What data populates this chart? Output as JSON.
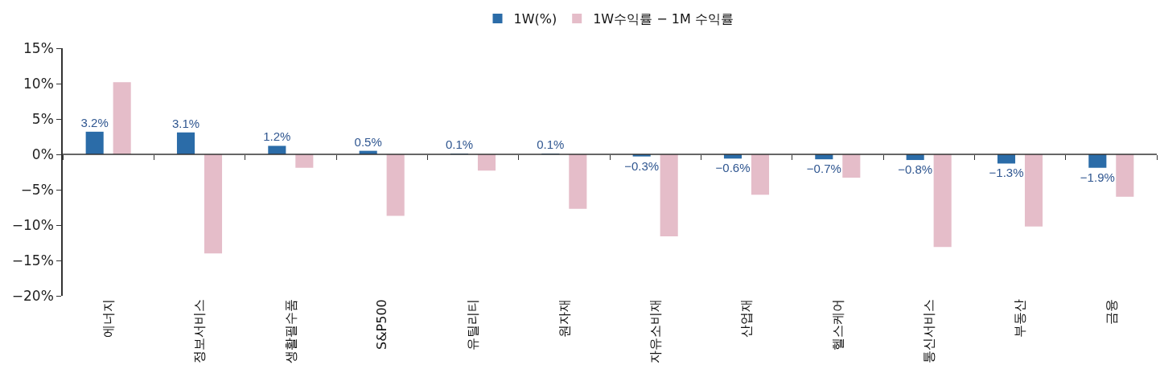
{
  "chart_data": {
    "type": "bar",
    "categories": [
      "에너지",
      "정보서비스",
      "생활필수품",
      "S&P500",
      "유틸리티",
      "원자재",
      "자유소비재",
      "산업재",
      "헬스케어",
      "통신서비스",
      "부동산",
      "금융"
    ],
    "series": [
      {
        "name": "1W(%)",
        "color": "#2b6ca8",
        "values": [
          3.2,
          3.1,
          1.2,
          0.5,
          0.1,
          0.1,
          -0.3,
          -0.6,
          -0.7,
          -0.8,
          -1.3,
          -1.9
        ],
        "value_labels": [
          "3.2%",
          "3.1%",
          "1.2%",
          "0.5%",
          "0.1%",
          "0.1%",
          "−0.3%",
          "−0.6%",
          "−0.7%",
          "−0.8%",
          "−1.3%",
          "−1.9%"
        ]
      },
      {
        "name": "1W수익률 − 1M 수익률",
        "color": "#e5bdc9",
        "values": [
          10.2,
          -14.0,
          -1.9,
          -8.7,
          -2.3,
          -7.7,
          -11.6,
          -5.7,
          -3.3,
          -13.1,
          -10.2,
          -6.0
        ]
      }
    ],
    "ylim": [
      -20,
      15
    ],
    "yticks": [
      {
        "value": 15,
        "label": "15%"
      },
      {
        "value": 10,
        "label": "10%"
      },
      {
        "value": 5,
        "label": "5%"
      },
      {
        "value": 0,
        "label": "0%"
      },
      {
        "value": -5,
        "label": "−5%"
      },
      {
        "value": -10,
        "label": "−10%"
      },
      {
        "value": -15,
        "label": "−15%"
      },
      {
        "value": -20,
        "label": "−20%"
      }
    ],
    "ref_lines": [
      {
        "axis": "y",
        "value": 0,
        "color": "#333333",
        "line_style": "solid"
      }
    ],
    "grid": false,
    "legend": "top"
  }
}
